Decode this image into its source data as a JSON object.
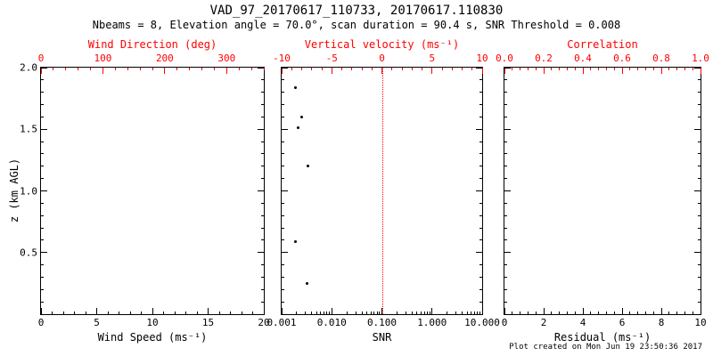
{
  "title": "VAD_97_20170617_110733, 20170617.110830",
  "subtitle": "Nbeams = 8, Elevation angle = 70.0°, scan duration = 90.4 s, SNR Threshold = 0.008",
  "footer": "Plot created on Mon Jun 19 23:50:36 2017",
  "y_axis_title": "z (km AGL)",
  "colors": {
    "axis": "#000000",
    "top_axis": "#ff0000",
    "background": "#ffffff",
    "point": "#000000"
  },
  "chart_data": [
    {
      "type": "scatter",
      "panel": "wind",
      "xlabel": "Wind Speed (ms⁻¹)",
      "xscale": "linear",
      "xlim": [
        0,
        20
      ],
      "x_ticks": [
        0,
        5,
        10,
        15,
        20
      ],
      "x_tick_labels": [
        "0",
        "5",
        "10",
        "15",
        "20"
      ],
      "top_label": "Wind Direction (deg)",
      "top_lim": [
        0,
        360
      ],
      "top_ticks": [
        0,
        100,
        200,
        300
      ],
      "top_tick_labels": [
        "0",
        "100",
        "200",
        "300"
      ],
      "ylim": [
        0,
        2
      ],
      "y_ticks": [
        0.5,
        1,
        1.5,
        2
      ],
      "y_tick_labels": [
        "0.5",
        "1.0",
        "1.5",
        "2.0"
      ],
      "show_y_labels": true,
      "grid": false,
      "points": []
    },
    {
      "type": "scatter",
      "panel": "snr",
      "xlabel": "SNR",
      "xscale": "log",
      "xlim": [
        0.001,
        10
      ],
      "x_ticks": [
        0.001,
        0.01,
        0.1,
        1,
        10
      ],
      "x_tick_labels": [
        "0.001",
        "0.010",
        "0.100",
        "1.000",
        "10.000"
      ],
      "top_label": "Vertical velocity (ms⁻¹)",
      "top_lim": [
        -10,
        10
      ],
      "top_ticks": [
        -10,
        -5,
        0,
        5,
        10
      ],
      "top_tick_labels": [
        "-10",
        "-5",
        "0",
        "5",
        "10"
      ],
      "ylim": [
        0,
        2
      ],
      "y_ticks": [
        0.5,
        1,
        1.5,
        2
      ],
      "y_tick_labels": [
        "0.5",
        "1.0",
        "1.5",
        "2.0"
      ],
      "show_y_labels": false,
      "grid": false,
      "refline_x": 0.1,
      "points": [
        {
          "x": 0.0019,
          "z": 1.84
        },
        {
          "x": 0.0025,
          "z": 1.6
        },
        {
          "x": 0.0021,
          "z": 1.51
        },
        {
          "x": 0.0033,
          "z": 1.2
        },
        {
          "x": 0.0019,
          "z": 0.59
        },
        {
          "x": 0.0032,
          "z": 0.25
        }
      ]
    },
    {
      "type": "scatter",
      "panel": "residual",
      "xlabel": "Residual (ms⁻¹)",
      "xscale": "linear",
      "xlim": [
        0,
        10
      ],
      "x_ticks": [
        0,
        2,
        4,
        6,
        8,
        10
      ],
      "x_tick_labels": [
        "0",
        "2",
        "4",
        "6",
        "8",
        "10"
      ],
      "top_label": "Correlation",
      "top_lim": [
        0,
        1
      ],
      "top_ticks": [
        0,
        0.2,
        0.4,
        0.6,
        0.8,
        1
      ],
      "top_tick_labels": [
        "0.0",
        "0.2",
        "0.4",
        "0.6",
        "0.8",
        "1.0"
      ],
      "ylim": [
        0,
        2
      ],
      "y_ticks": [
        0.5,
        1,
        1.5,
        2
      ],
      "y_tick_labels": [
        "0.5",
        "1.0",
        "1.5",
        "2.0"
      ],
      "show_y_labels": false,
      "grid": false,
      "points": []
    }
  ]
}
